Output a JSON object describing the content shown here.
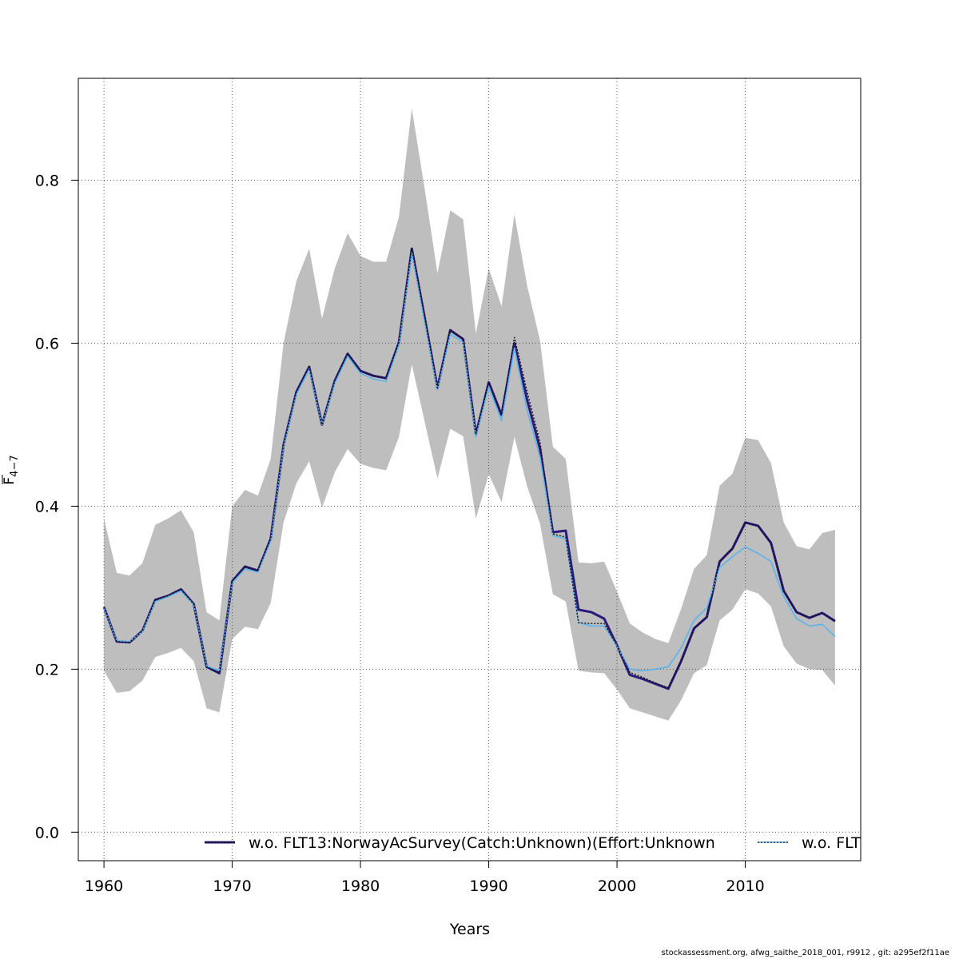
{
  "chart_data": {
    "type": "line",
    "xlabel": "Years",
    "ylabel_base": "F",
    "ylabel_sub": "4−7",
    "xlim": [
      1958,
      2019
    ],
    "ylim": [
      -0.035,
      0.925
    ],
    "xticks": [
      1960,
      1970,
      1980,
      1990,
      2000,
      2010
    ],
    "yticks": [
      0.0,
      0.2,
      0.4,
      0.6,
      0.8
    ],
    "ytick_labels": [
      "0.0",
      "0.2",
      "0.4",
      "0.6",
      "0.8"
    ],
    "grid": true,
    "legend_position": "bottom",
    "x": [
      1960,
      1961,
      1962,
      1963,
      1964,
      1965,
      1966,
      1967,
      1968,
      1969,
      1970,
      1971,
      1972,
      1973,
      1974,
      1975,
      1976,
      1977,
      1978,
      1979,
      1980,
      1981,
      1982,
      1983,
      1984,
      1985,
      1986,
      1987,
      1988,
      1989,
      1990,
      1991,
      1992,
      1993,
      1994,
      1995,
      1996,
      1997,
      1998,
      1999,
      2000,
      2001,
      2002,
      2003,
      2004,
      2005,
      2006,
      2007,
      2008,
      2009,
      2010,
      2011,
      2012,
      2013,
      2014,
      2015,
      2016,
      2017
    ],
    "band": {
      "color": "#bebebe",
      "upper": [
        0.385,
        0.318,
        0.315,
        0.33,
        0.377,
        0.385,
        0.395,
        0.368,
        0.27,
        0.26,
        0.4,
        0.42,
        0.413,
        0.458,
        0.6,
        0.676,
        0.716,
        0.63,
        0.692,
        0.735,
        0.707,
        0.7,
        0.7,
        0.755,
        0.888,
        0.79,
        0.686,
        0.763,
        0.752,
        0.612,
        0.692,
        0.645,
        0.758,
        0.67,
        0.603,
        0.473,
        0.458,
        0.331,
        0.33,
        0.332,
        0.295,
        0.256,
        0.245,
        0.237,
        0.232,
        0.274,
        0.323,
        0.34,
        0.425,
        0.44,
        0.484,
        0.481,
        0.453,
        0.38,
        0.351,
        0.347,
        0.367,
        0.371
      ],
      "lower": [
        0.198,
        0.171,
        0.173,
        0.186,
        0.215,
        0.22,
        0.226,
        0.21,
        0.152,
        0.147,
        0.237,
        0.252,
        0.249,
        0.281,
        0.38,
        0.428,
        0.455,
        0.398,
        0.442,
        0.47,
        0.452,
        0.447,
        0.444,
        0.485,
        0.574,
        0.504,
        0.434,
        0.495,
        0.486,
        0.385,
        0.439,
        0.405,
        0.485,
        0.424,
        0.378,
        0.292,
        0.283,
        0.198,
        0.196,
        0.195,
        0.175,
        0.152,
        0.147,
        0.142,
        0.137,
        0.162,
        0.195,
        0.205,
        0.26,
        0.273,
        0.298,
        0.293,
        0.277,
        0.228,
        0.207,
        0.2,
        0.199,
        0.18
      ]
    },
    "series": [
      {
        "name": "w.o. FLT13:NorwayAcSurvey(Catch:Unknown)(Effort:Unknown",
        "color": "#2b1a7a",
        "style": "solid",
        "values": [
          0.276,
          0.234,
          0.233,
          0.247,
          0.285,
          0.29,
          0.298,
          0.28,
          0.203,
          0.195,
          0.308,
          0.326,
          0.321,
          0.36,
          0.475,
          0.54,
          0.571,
          0.5,
          0.554,
          0.587,
          0.566,
          0.56,
          0.557,
          0.601,
          0.716,
          0.632,
          0.545,
          0.616,
          0.605,
          0.488,
          0.552,
          0.512,
          0.6,
          0.53,
          0.47,
          0.368,
          0.37,
          0.273,
          0.27,
          0.262,
          0.229,
          0.193,
          0.188,
          0.182,
          0.176,
          0.21,
          0.25,
          0.264,
          0.332,
          0.348,
          0.38,
          0.376,
          0.355,
          0.296,
          0.27,
          0.263,
          0.269,
          0.259
        ]
      },
      {
        "name": "w.o. FLT",
        "color": "#5ab4ec",
        "style": "solid",
        "values": [
          0.275,
          0.235,
          0.234,
          0.246,
          0.283,
          0.289,
          0.296,
          0.279,
          0.204,
          0.198,
          0.306,
          0.323,
          0.319,
          0.357,
          0.473,
          0.537,
          0.568,
          0.5,
          0.551,
          0.584,
          0.563,
          0.556,
          0.553,
          0.598,
          0.711,
          0.626,
          0.543,
          0.611,
          0.601,
          0.485,
          0.547,
          0.505,
          0.594,
          0.517,
          0.46,
          0.364,
          0.36,
          0.257,
          0.253,
          0.253,
          0.228,
          0.2,
          0.198,
          0.2,
          0.203,
          0.226,
          0.26,
          0.275,
          0.325,
          0.338,
          0.35,
          0.342,
          0.332,
          0.289,
          0.262,
          0.253,
          0.255,
          0.24
        ]
      },
      {
        "name": "",
        "color": "#111111",
        "style": "dotted",
        "values": [
          0.276,
          0.234,
          0.233,
          0.247,
          0.285,
          0.29,
          0.298,
          0.28,
          0.203,
          0.195,
          0.308,
          0.326,
          0.321,
          0.36,
          0.475,
          0.54,
          0.571,
          0.5,
          0.554,
          0.587,
          0.566,
          0.56,
          0.557,
          0.601,
          0.716,
          0.632,
          0.545,
          0.616,
          0.605,
          0.488,
          0.552,
          0.512,
          0.607,
          0.54,
          0.478,
          0.366,
          0.362,
          0.257,
          0.256,
          0.256,
          0.229,
          0.196,
          0.19,
          0.183,
          0.177,
          0.21,
          0.25,
          0.264,
          0.332,
          0.348,
          0.38,
          0.376,
          0.355,
          0.296,
          0.27,
          0.263,
          0.269,
          0.259
        ]
      }
    ],
    "legend": [
      {
        "label": "w.o. FLT13:NorwayAcSurvey(Catch:Unknown)(Effort:Unknown",
        "line_color": "#2b1a7a",
        "line_style": "solid",
        "overlay_color": "#111111"
      },
      {
        "label": "w.o. FLT",
        "line_color": "#5ab4ec",
        "line_style": "solid",
        "overlay_color": "#111111"
      }
    ]
  },
  "footer_text": "stockassessment.org, afwg_saithe_2018_001, r9912 , git: a295ef2f11ae"
}
